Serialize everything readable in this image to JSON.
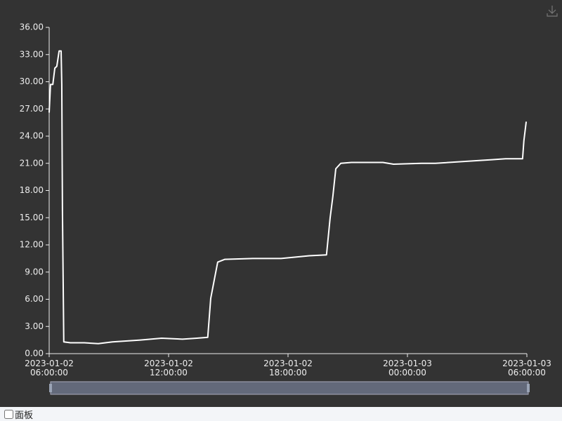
{
  "chart_data": {
    "type": "line",
    "color": "#ffffff",
    "x": [
      "2023-01-02 06:00:00",
      "2023-01-02 06:04:00",
      "2023-01-02 06:11:00",
      "2023-01-02 06:17:00",
      "2023-01-02 06:23:00",
      "2023-01-02 06:30:00",
      "2023-01-02 06:36:00",
      "2023-01-02 06:38:00",
      "2023-01-02 06:40:00",
      "2023-01-02 06:44:00",
      "2023-01-02 07:04:00",
      "2023-01-02 07:46:00",
      "2023-01-02 08:28:00",
      "2023-01-02 09:11:00",
      "2023-01-02 10:35:00",
      "2023-01-02 11:39:00",
      "2023-01-02 12:42:00",
      "2023-01-02 13:25:00",
      "2023-01-02 13:58:00",
      "2023-01-02 14:07:00",
      "2023-01-02 14:18:00",
      "2023-01-02 14:28:00",
      "2023-01-02 14:49:00",
      "2023-01-02 16:14:00",
      "2023-01-02 17:39:00",
      "2023-01-02 19:04:00",
      "2023-01-02 19:56:00",
      "2023-01-02 20:07:00",
      "2023-01-02 20:15:00",
      "2023-01-02 20:24:00",
      "2023-01-02 20:39:00",
      "2023-01-02 21:11:00",
      "2023-01-02 22:46:00",
      "2023-01-02 23:18:00",
      "2023-01-03 00:42:00",
      "2023-01-03 01:24:00",
      "2023-01-03 03:32:00",
      "2023-01-03 04:14:00",
      "2023-01-03 04:56:00",
      "2023-01-03 05:47:00",
      "2023-01-03 05:51:00",
      "2023-01-03 05:58:00"
    ],
    "values": [
      26.6,
      29.7,
      29.7,
      31.5,
      31.7,
      33.4,
      33.4,
      29.7,
      15.8,
      1.3,
      1.2,
      1.2,
      1.1,
      1.3,
      1.5,
      1.7,
      1.6,
      1.7,
      1.8,
      6.1,
      8.2,
      10.1,
      10.4,
      10.5,
      10.5,
      10.8,
      10.9,
      15.0,
      17.3,
      20.4,
      21.0,
      21.1,
      21.1,
      20.9,
      21.0,
      21.0,
      21.3,
      21.4,
      21.5,
      21.5,
      23.5,
      25.6
    ],
    "xlim": [
      "2023-01-02 06:00:00",
      "2023-01-03 06:00:00"
    ],
    "xticks": [
      "2023-01-02 06:00:00",
      "2023-01-02 12:00:00",
      "2023-01-02 18:00:00",
      "2023-01-03 00:00:00",
      "2023-01-03 06:00:00"
    ],
    "ylim": [
      0,
      36
    ],
    "yticks": [
      {
        "value": 0,
        "label": "0.00"
      },
      {
        "value": 3,
        "label": "3.00"
      },
      {
        "value": 6,
        "label": "6.00"
      },
      {
        "value": 9,
        "label": "9.00"
      },
      {
        "value": 12,
        "label": "12.00"
      },
      {
        "value": 15,
        "label": "15.00"
      },
      {
        "value": 18,
        "label": "18.00"
      },
      {
        "value": 21,
        "label": "21.00"
      },
      {
        "value": 24,
        "label": "24.00"
      },
      {
        "value": 27,
        "label": "27.00"
      },
      {
        "value": 30,
        "label": "30.00"
      },
      {
        "value": 33,
        "label": "33.00"
      },
      {
        "value": 36,
        "label": "36.00"
      }
    ],
    "grid": false
  },
  "panel": {
    "label": "面板"
  }
}
